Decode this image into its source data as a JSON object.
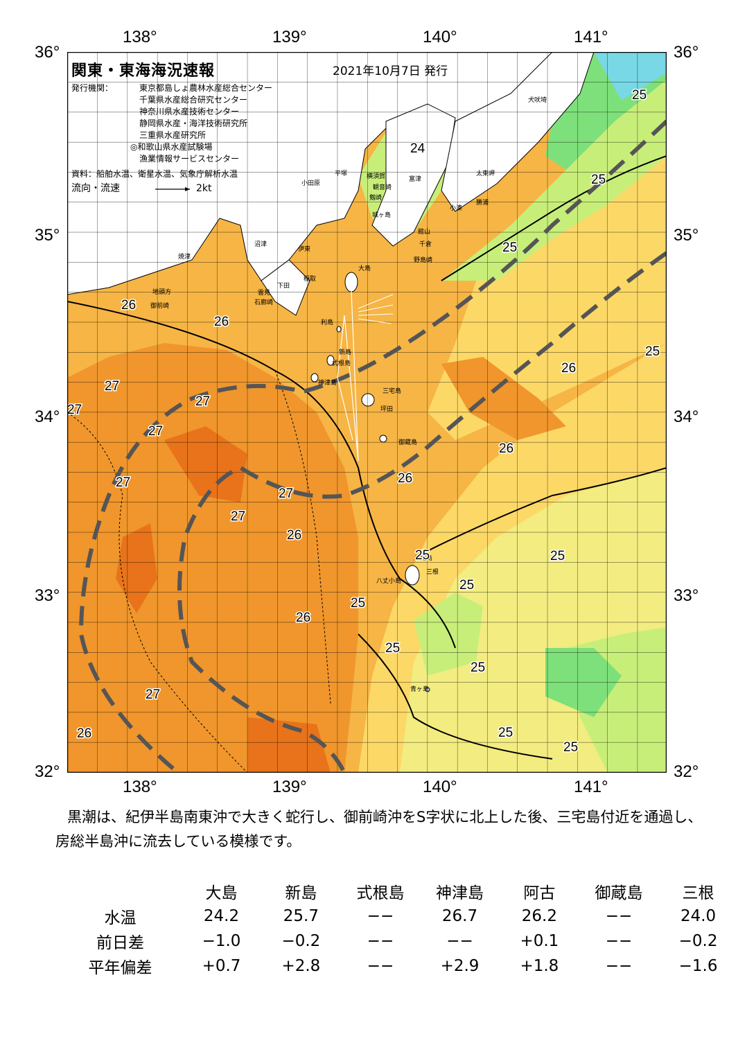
{
  "title": "関東・東海海況速報",
  "date": "2021年10月7日 発行",
  "issuer_label": "発行機関：",
  "issuers": [
    "東京都島しょ農林水産総合センター",
    "千葉県水産総合研究センター",
    "神奈川県水産技術センター",
    "静岡県水産・海洋技術研究所",
    "三重県水産研究所",
    "◎和歌山県水産試験場",
    "漁業情報サービスセンター"
  ],
  "sources": "資料：船舶水温、衛星水温、気象庁解析水温",
  "flow_legend": "流向・流速",
  "flow_scale": "2kt",
  "lon_labels": [
    "138°",
    "139°",
    "140°",
    "141°"
  ],
  "lat_labels": [
    "36°",
    "35°",
    "34°",
    "33°",
    "32°"
  ],
  "isotherm_labels": [
    "24",
    "25",
    "25",
    "25",
    "25",
    "25",
    "25",
    "25",
    "25",
    "25",
    "25",
    "25",
    "25",
    "26",
    "26",
    "26",
    "26",
    "26",
    "26",
    "26",
    "26",
    "27",
    "27",
    "27",
    "27",
    "27",
    "27",
    "27",
    "27"
  ],
  "place_names": [
    "犬吠埼",
    "太東岬",
    "勝浦",
    "小湊",
    "館山",
    "千倉",
    "野島崎",
    "富津",
    "横須賀",
    "観音崎",
    "剱崎",
    "城ヶ島",
    "平塚",
    "小田原",
    "大島",
    "利島",
    "新島",
    "式根島",
    "神津島",
    "三宅島",
    "坪田",
    "御蔵島",
    "八丈島",
    "三根",
    "八丈小島",
    "青ヶ島",
    "沼津",
    "伊東",
    "稲取",
    "下田",
    "雲見",
    "石廊崎",
    "焼津",
    "御前崎",
    "地頭方"
  ],
  "narrative": "黒潮は、紀伊半島南東沖で大きく蛇行し、御前崎沖をS字状に北上した後、三宅島付近を通過し、房総半島沖に流去している模様です。",
  "table": {
    "columns": [
      "大島",
      "新島",
      "式根島",
      "神津島",
      "阿古",
      "御蔵島",
      "三根"
    ],
    "rows": [
      {
        "label": "水温",
        "values": [
          "24.2",
          "25.7",
          "−−",
          "26.7",
          "26.2",
          "−−",
          "24.0"
        ]
      },
      {
        "label": "前日差",
        "values": [
          "−1.0",
          "−0.2",
          "−−",
          "−−",
          "+0.1",
          "−−",
          "−0.2"
        ]
      },
      {
        "label": "平年偏差",
        "values": [
          "+0.7",
          "+2.8",
          "−−",
          "+2.9",
          "+1.8",
          "−−",
          "−1.6"
        ]
      }
    ]
  },
  "colors": {
    "t27_deep": "#e8731a",
    "t27": "#f0962c",
    "t26": "#f6b545",
    "t25_warm": "#fcd867",
    "t25": "#f3ec80",
    "t24": "#c8ee7a",
    "t23": "#7ee07a",
    "t22": "#40c88a",
    "cold": "#78d8e6",
    "land": "#ffffff",
    "kuroshio": "#555555"
  }
}
